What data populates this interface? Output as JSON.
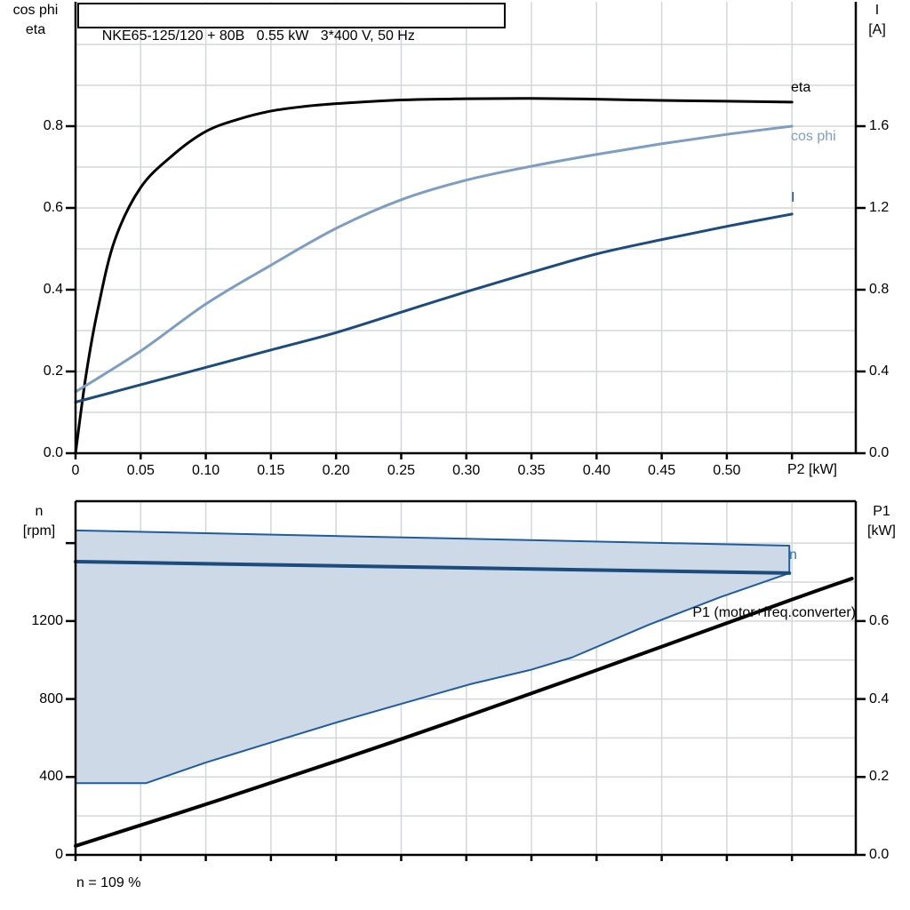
{
  "chart_data": [
    {
      "type": "line",
      "id": "p2-performance-chart",
      "title": "NKE65-125/120 + 80B   0.55 kW   3*400 V, 50 Hz",
      "ylabel_left": {
        "l1": "cos phi",
        "l2": "eta"
      },
      "ylabel_right": {
        "l1": "I",
        "l2": "[A]"
      },
      "xlabel": "P2 [kW]",
      "xlim": [
        0,
        0.599
      ],
      "ylim_left": [
        0,
        1.1043
      ],
      "ylim_right": [
        0,
        2.2087
      ],
      "x_ticks": [
        {
          "v": 0,
          "t": "0"
        },
        {
          "v": 0.05,
          "t": "0.05"
        },
        {
          "v": 0.1,
          "t": "0.10"
        },
        {
          "v": 0.15,
          "t": "0.15"
        },
        {
          "v": 0.2,
          "t": "0.20"
        },
        {
          "v": 0.25,
          "t": "0.25"
        },
        {
          "v": 0.3,
          "t": "0.30"
        },
        {
          "v": 0.35,
          "t": "0.35"
        },
        {
          "v": 0.4,
          "t": "0.40"
        },
        {
          "v": 0.45,
          "t": "0.45"
        },
        {
          "v": 0.5,
          "t": "0.50"
        },
        {
          "v": 0.55,
          "t": "",
          "tick": true
        }
      ],
      "y_ticks_left": [
        {
          "v": 0,
          "t": "0.0"
        },
        {
          "v": 0.2,
          "t": "0.2"
        },
        {
          "v": 0.4,
          "t": "0.4"
        },
        {
          "v": 0.6,
          "t": "0.6"
        },
        {
          "v": 0.8,
          "t": "0.8"
        }
      ],
      "y_ticks_right": [
        {
          "v": 0,
          "t": "0.0"
        },
        {
          "v": 0.4,
          "t": "0.4"
        },
        {
          "v": 0.8,
          "t": "0.8"
        },
        {
          "v": 1.2,
          "t": "1.2"
        },
        {
          "v": 1.6,
          "t": "1.6"
        }
      ],
      "grid_x": [
        0.05,
        0.1,
        0.15,
        0.2,
        0.25,
        0.3,
        0.35,
        0.4,
        0.45,
        0.5,
        0.55
      ],
      "grid_y": [
        0.1,
        0.2,
        0.3,
        0.4,
        0.5,
        0.6,
        0.7,
        0.8,
        0.9,
        1.0
      ],
      "series": [
        {
          "name": "eta",
          "label": "eta",
          "axis": "left",
          "color": "#000000",
          "width": 3,
          "smooth": true,
          "x": [
            0,
            0.008,
            0.017,
            0.03,
            0.05,
            0.075,
            0.1,
            0.125,
            0.15,
            0.175,
            0.2,
            0.25,
            0.3,
            0.35,
            0.4,
            0.45,
            0.5,
            0.55
          ],
          "y": [
            0,
            0.19,
            0.35,
            0.52,
            0.65,
            0.73,
            0.787,
            0.817,
            0.837,
            0.848,
            0.855,
            0.864,
            0.867,
            0.868,
            0.866,
            0.863,
            0.861,
            0.859
          ]
        },
        {
          "name": "cos phi",
          "label": "cos phi",
          "axis": "left",
          "color": "#7d9dc2",
          "width": 3,
          "smooth": true,
          "x": [
            0,
            0.05,
            0.1,
            0.15,
            0.2,
            0.25,
            0.3,
            0.35,
            0.4,
            0.45,
            0.5,
            0.55
          ],
          "y": [
            0.15,
            0.25,
            0.365,
            0.46,
            0.55,
            0.62,
            0.668,
            0.702,
            0.731,
            0.757,
            0.78,
            0.8
          ]
        },
        {
          "name": "I",
          "label": "I",
          "axis": "right",
          "color": "#1c4b7d",
          "width": 3,
          "smooth": true,
          "x": [
            0,
            0.05,
            0.1,
            0.15,
            0.2,
            0.25,
            0.3,
            0.35,
            0.4,
            0.45,
            0.5,
            0.55
          ],
          "y": [
            0.25,
            0.335,
            0.42,
            0.505,
            0.59,
            0.69,
            0.79,
            0.885,
            0.975,
            1.045,
            1.11,
            1.17
          ]
        }
      ]
    },
    {
      "type": "area-line",
      "id": "speed-power-chart",
      "ylabel_left": {
        "l1": "n",
        "l2": "[rpm]"
      },
      "ylabel_right": {
        "l1": "P1",
        "l2": "[kW]"
      },
      "note": "n = 109 %",
      "xlim": [
        0,
        0.599
      ],
      "ylim_left": [
        0,
        1815
      ],
      "ylim_right": [
        0,
        0.9075
      ],
      "x_ticks": [
        {
          "v": 0,
          "t": "",
          "tick": true
        },
        {
          "v": 0.05,
          "t": "",
          "tick": true
        },
        {
          "v": 0.1,
          "t": "",
          "tick": true
        },
        {
          "v": 0.15,
          "t": "",
          "tick": true
        },
        {
          "v": 0.2,
          "t": "",
          "tick": true
        },
        {
          "v": 0.25,
          "t": "",
          "tick": true
        },
        {
          "v": 0.3,
          "t": "",
          "tick": true
        },
        {
          "v": 0.35,
          "t": "",
          "tick": true
        },
        {
          "v": 0.4,
          "t": "",
          "tick": true
        },
        {
          "v": 0.45,
          "t": "",
          "tick": true
        },
        {
          "v": 0.5,
          "t": "",
          "tick": true
        },
        {
          "v": 0.55,
          "t": "",
          "tick": true
        }
      ],
      "y_ticks_left": [
        {
          "v": 0,
          "t": "0"
        },
        {
          "v": 400,
          "t": "400"
        },
        {
          "v": 800,
          "t": "800"
        },
        {
          "v": 1200,
          "t": "1200"
        },
        {
          "v": 1600,
          "t": "",
          "tick": true
        }
      ],
      "y_ticks_right": [
        {
          "v": 0,
          "t": "0.0"
        },
        {
          "v": 0.2,
          "t": "0.2"
        },
        {
          "v": 0.4,
          "t": "0.4"
        },
        {
          "v": 0.6,
          "t": "0.6"
        }
      ],
      "grid_x": [
        0.05,
        0.1,
        0.15,
        0.2,
        0.25,
        0.3,
        0.35,
        0.4,
        0.45,
        0.5,
        0.55
      ],
      "grid_y": [
        200,
        400,
        600,
        800,
        1000,
        1200,
        1400,
        1600
      ],
      "region": {
        "name": "speed-range-area",
        "fill": "#cdd9e6",
        "stroke": "#1e5c9d",
        "stroke_width": 2,
        "upper": {
          "x": [
            0,
            0.548
          ],
          "y": [
            1665,
            1587
          ]
        },
        "lower": {
          "x": [
            0,
            0.054,
            0.1,
            0.151,
            0.205,
            0.25,
            0.303,
            0.349,
            0.381,
            0.44,
            0.495,
            0.548
          ],
          "y": [
            368,
            368,
            474,
            579,
            689,
            775,
            876,
            949,
            1013,
            1181,
            1323,
            1446
          ]
        }
      },
      "series": [
        {
          "name": "n",
          "label": "n",
          "axis": "left",
          "color": "#1c4b7d",
          "width": 4,
          "smooth": false,
          "x": [
            0,
            0.548
          ],
          "y": [
            1505,
            1446
          ]
        },
        {
          "name": "P1 (motor+freq.converter)",
          "label": "P1 (motor+freq.converter)",
          "axis": "right",
          "color": "#000000",
          "width": 4,
          "smooth": true,
          "x": [
            0,
            0.113,
            0.249,
            0.385,
            0.549,
            0.596
          ],
          "y": [
            0.023,
            0.144,
            0.296,
            0.456,
            0.654,
            0.709
          ]
        }
      ]
    }
  ],
  "colors": {
    "grid": "#d4d7da",
    "frame": "#000000",
    "accent_light_blue": "#7d9dc2",
    "accent_navy": "#1c4b7d",
    "n_label_blue": "#2e74b6",
    "area_fill": "#cdd9e6",
    "area_border": "#1e5c9d"
  }
}
